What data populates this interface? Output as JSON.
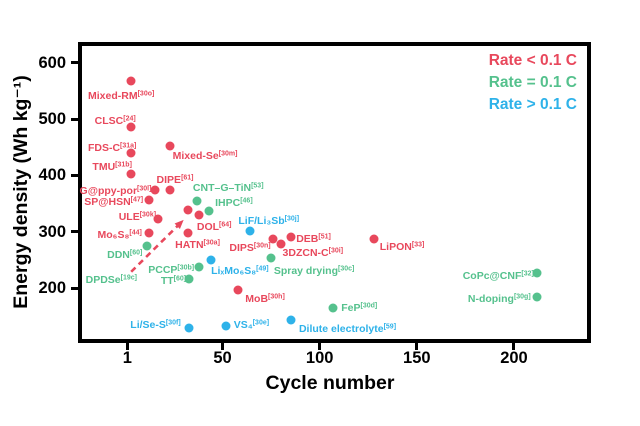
{
  "figure_title": "",
  "legend": {
    "entries": [
      {
        "label": "Rate < 0.1 C",
        "color": "#e8485c",
        "key": "rate_lt"
      },
      {
        "label": "Rate = 0.1 C",
        "color": "#55c18d",
        "key": "rate_eq"
      },
      {
        "label": "Rate > 0.1 C",
        "color": "#2eb2e9",
        "key": "rate_gt"
      }
    ],
    "position": "top-right"
  },
  "colors": {
    "rate_lt": "#e8485c",
    "rate_eq": "#55c18d",
    "rate_gt": "#2eb2e9",
    "axis": "#000000",
    "background": "#ffffff"
  },
  "chart_data": {
    "type": "scatter",
    "title": "",
    "xlabel": "Cycle number",
    "ylabel": "Energy density (Wh kg⁻¹)",
    "xlim": [
      -24,
      240
    ],
    "ylim": [
      95,
      635
    ],
    "x_ticks": [
      1,
      50,
      100,
      150,
      200
    ],
    "y_ticks": [
      600,
      500,
      400,
      300,
      200
    ],
    "grid": false,
    "legend_position": "top-right",
    "series": [
      {
        "name": "Rate < 0.1 C",
        "color": "#e8485c",
        "points": [
          {
            "name": "Mixed-RM",
            "ref": "[30o]",
            "cycle": 3,
            "energy": 568,
            "label_dx": -10,
            "label_dy": 14
          },
          {
            "name": "CLSC",
            "ref": "[24]",
            "cycle": 3,
            "energy": 486,
            "label_dx": -16,
            "label_dy": -7
          },
          {
            "name": "FDS-C",
            "ref": "[31a]",
            "cycle": 3,
            "energy": 440,
            "label_dx": -19,
            "label_dy": -6
          },
          {
            "name": "TMU",
            "ref": "[31b]",
            "cycle": 3,
            "energy": 402,
            "label_dx": -19,
            "label_dy": -8
          },
          {
            "name": "Mixed-Se",
            "ref": "[30m]",
            "cycle": 23,
            "energy": 453,
            "label_dx": 35,
            "label_dy": 9
          },
          {
            "name": "DIPE",
            "ref": "[61]",
            "cycle": 23,
            "energy": 374,
            "label_dx": 5,
            "label_dy": -11
          },
          {
            "name": "G@ppy-por",
            "ref": "[30l]",
            "cycle": 15,
            "energy": 374,
            "label_dx": -39,
            "label_dy": 0
          },
          {
            "name": "SP@HSN",
            "ref": "[47]",
            "cycle": 12,
            "energy": 356,
            "label_dx": -35,
            "label_dy": 1
          },
          {
            "name": "ULE",
            "ref": "[30k]",
            "cycle": 17,
            "energy": 322,
            "label_dx": -21,
            "label_dy": -3
          },
          {
            "name": "Mo₆S₈",
            "ref": "[44]",
            "cycle": 12,
            "energy": 298,
            "label_dx": -29,
            "label_dy": 1
          },
          {
            "name": "HATN",
            "ref": "[30a]",
            "cycle": 32,
            "energy": 298,
            "label_dx": 10,
            "label_dy": 11
          },
          {
            "name": "DOL",
            "ref": "[64]",
            "cycle": 38,
            "energy": 330,
            "label_dx": 15,
            "label_dy": 11
          },
          {
            "name": "",
            "ref": "",
            "cycle": 32,
            "energy": 339,
            "label_dx": 0,
            "label_dy": 0
          },
          {
            "name": "DIPS",
            "ref": "[30n]",
            "cycle": 76,
            "energy": 288,
            "label_dx": -23,
            "label_dy": 8
          },
          {
            "name": "DEB",
            "ref": "[51]",
            "cycle": 85,
            "energy": 291,
            "label_dx": 23,
            "label_dy": 1
          },
          {
            "name": "3DZCN-C",
            "ref": "[30i]",
            "cycle": 80,
            "energy": 278,
            "label_dx": 32,
            "label_dy": 8
          },
          {
            "name": "LiPON",
            "ref": "[33]",
            "cycle": 128,
            "energy": 287,
            "label_dx": 28,
            "label_dy": 7
          },
          {
            "name": "MoB",
            "ref": "[30h]",
            "cycle": 58,
            "energy": 197,
            "label_dx": 27,
            "label_dy": 8
          }
        ]
      },
      {
        "name": "Rate = 0.1 C",
        "color": "#55c18d",
        "points": [
          {
            "name": "CNT–G–TiN",
            "ref": "[53]",
            "cycle": 37,
            "energy": 354,
            "label_dx": 31,
            "label_dy": -14
          },
          {
            "name": "IHPC",
            "ref": "[46]",
            "cycle": 43,
            "energy": 337,
            "label_dx": 25,
            "label_dy": -9
          },
          {
            "name": "DDN",
            "ref": "[60]",
            "cycle": 11,
            "energy": 275,
            "label_dx": -22,
            "label_dy": 8
          },
          {
            "name": "DPDSe",
            "ref": "[19c]",
            "cycle": 1,
            "energy": 215,
            "label_dx": -16,
            "label_dy": -1,
            "marker": false
          },
          {
            "name": "PCCP",
            "ref": "[30b]",
            "cycle": 38,
            "energy": 237,
            "label_dx": -28,
            "label_dy": 2
          },
          {
            "name": "TT",
            "ref": "[60]",
            "cycle": 33,
            "energy": 216,
            "label_dx": -16,
            "label_dy": 1
          },
          {
            "name": "Spray drying",
            "ref": "[30c]",
            "cycle": 75,
            "energy": 253,
            "label_dx": 43,
            "label_dy": 12
          },
          {
            "name": "FeP",
            "ref": "[30d]",
            "cycle": 107,
            "energy": 165,
            "label_dx": 26,
            "label_dy": -1
          },
          {
            "name": "CoPc@CNF",
            "ref": "[32]",
            "cycle": 212,
            "energy": 226,
            "label_dx": -39,
            "label_dy": 2
          },
          {
            "name": "N-doping",
            "ref": "[30g]",
            "cycle": 212,
            "energy": 185,
            "label_dx": -38,
            "label_dy": 1
          }
        ]
      },
      {
        "name": "Rate > 0.1 C",
        "color": "#2eb2e9",
        "points": [
          {
            "name": "LiF/Li₃Sb",
            "ref": "[30j]",
            "cycle": 64,
            "energy": 302,
            "label_dx": 19,
            "label_dy": -11
          },
          {
            "name": "LiₓMo₆S₈",
            "ref": "[49]",
            "cycle": 44,
            "energy": 249,
            "label_dx": 29,
            "label_dy": 10
          },
          {
            "name": "Li/Se-S",
            "ref": "[30f]",
            "cycle": 33,
            "energy": 130,
            "label_dx": -34,
            "label_dy": -4
          },
          {
            "name": "VS₄",
            "ref": "[30e]",
            "cycle": 52,
            "energy": 133,
            "label_dx": 25,
            "label_dy": -2
          },
          {
            "name": "Dilute electrolyte",
            "ref": "[59]",
            "cycle": 85,
            "energy": 144,
            "label_dx": 57,
            "label_dy": 8
          }
        ]
      }
    ],
    "annotations": [
      {
        "type": "dashed-arrow",
        "color": "#e8485c",
        "from": {
          "cycle": 3,
          "energy": 229
        },
        "to": {
          "cycle": 30,
          "energy": 321
        }
      }
    ]
  }
}
